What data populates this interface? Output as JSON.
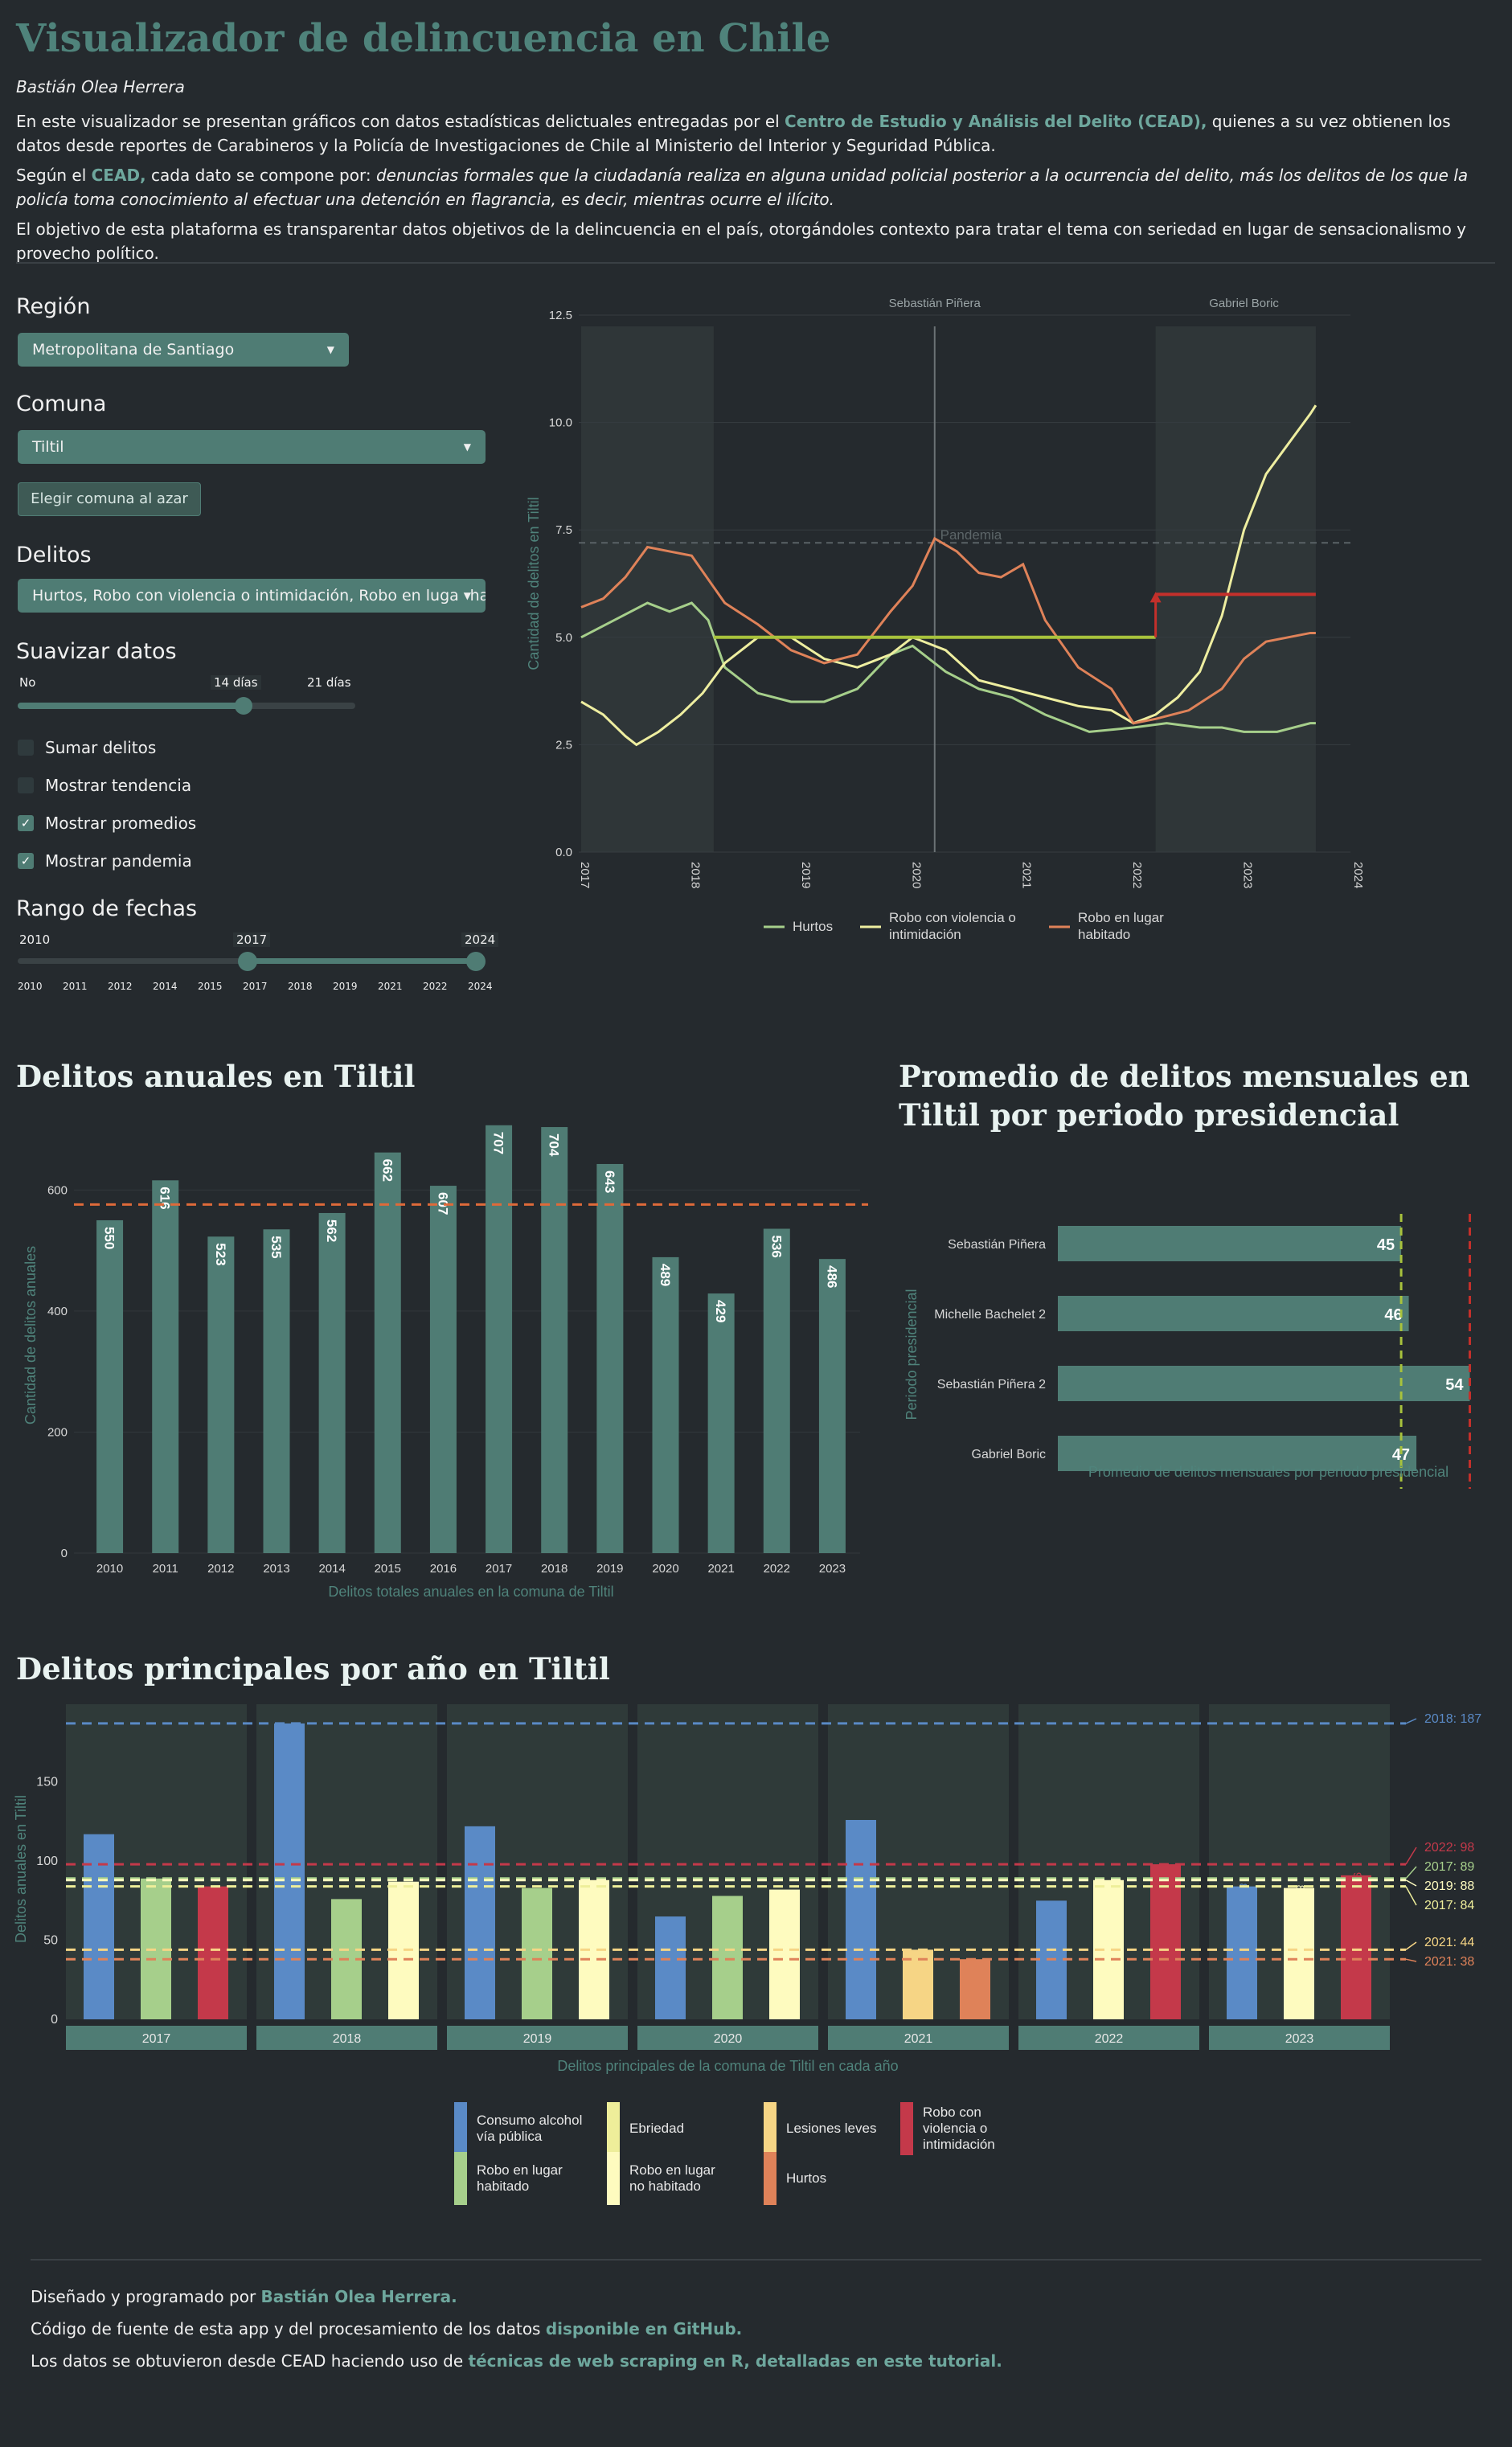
{
  "header": {
    "title": "Visualizador de delincuencia en Chile",
    "author": "Bastián Olea Herrera",
    "p1_pre": "En este visualizador se presentan gráficos con datos estadísticas delictuales entregadas por el ",
    "p1_link": "Centro de Estudio y Análisis del Delito (CEAD),",
    "p1_post": " quienes a su vez obtienen los datos desde reportes de Carabineros y la Policía de Investigaciones de Chile al Ministerio del Interior y Seguridad Pública.",
    "p2_pre": "Según el ",
    "p2_link": "CEAD,",
    "p2_mid": " cada dato se compone por: ",
    "p2_em": "denuncias formales que la ciudadanía realiza en alguna unidad policial posterior a la ocurrencia del delito, más los delitos de los que la policía toma conocimiento al efectuar una detención en flagrancia, es decir, mientras ocurre el ilícito.",
    "p3": "El objetivo de esta plataforma es transparentar datos objetivos de la delincuencia en el país, otorgándoles contexto para tratar el tema con seriedad en lugar de sensacionalismo y provecho político."
  },
  "controls": {
    "region_label": "Región",
    "region_value": "Metropolitana de Santiago",
    "comuna_label": "Comuna",
    "comuna_value": "Tiltil",
    "random_button": "Elegir comuna al azar",
    "delitos_label": "Delitos",
    "delitos_value": "Hurtos, Robo con violencia o intimidación, Robo en lugar habitado",
    "suavizar_label": "Suavizar datos",
    "suavizar_min": "No",
    "suavizar_value": "14 días",
    "suavizar_max": "21 días",
    "suavizar_fraction": 0.67,
    "sumar": "Sumar delitos",
    "tendencia": "Mostrar tendencia",
    "promedios": "Mostrar promedios",
    "pandemia": "Mostrar pandemia",
    "sumar_checked": false,
    "tendencia_checked": false,
    "promedios_checked": true,
    "pandemia_checked": true,
    "rango_label": "Rango de fechas",
    "rango_min": "2010",
    "rango_from": "2017",
    "rango_to": "2024",
    "rango_ticks": [
      "2010",
      "2011",
      "2012",
      "2014",
      "2015",
      "2017",
      "2018",
      "2019",
      "2021",
      "2022",
      "2024"
    ]
  },
  "chart_data": [
    {
      "type": "line",
      "ylabel": "Cantidad de delitos en Tiltil",
      "xlim": [
        2017,
        2024
      ],
      "ylim": [
        0,
        12.5
      ],
      "x_ticks": [
        "2017",
        "2018",
        "2019",
        "2020",
        "2021",
        "2022",
        "2023",
        "2024"
      ],
      "y_ticks": [
        "0.0",
        "2.5",
        "5.0",
        "7.5",
        "10.0",
        "12.5"
      ],
      "periods": [
        {
          "name": "Sebastián Piñera",
          "label_x": 2020.2
        },
        {
          "name": "Gabriel Boric",
          "label_x": 2023.0
        }
      ],
      "shaded": [
        [
          2017,
          2018.2
        ],
        [
          2022.2,
          2023.65
        ]
      ],
      "vline": 2020.2,
      "pandemia": {
        "label": "Pandemia",
        "y": 7.2
      },
      "mean_line": {
        "from": 2018.2,
        "to": 2022.2,
        "y": 5.0
      },
      "mean_line_2": {
        "from": 2022.2,
        "to": 2023.65,
        "y": 6.0
      },
      "series": [
        {
          "name": "Hurtos",
          "color": "#a6cf8b",
          "x": [
            2017,
            2017.3,
            2017.6,
            2017.8,
            2018.0,
            2018.15,
            2018.3,
            2018.6,
            2018.9,
            2019.2,
            2019.5,
            2019.8,
            2020.0,
            2020.3,
            2020.6,
            2020.9,
            2021.2,
            2021.6,
            2022.0,
            2022.3,
            2022.6,
            2022.8,
            2023.0,
            2023.3,
            2023.6,
            2023.65
          ],
          "y": [
            5.0,
            5.4,
            5.8,
            5.6,
            5.8,
            5.4,
            4.3,
            3.7,
            3.5,
            3.5,
            3.8,
            4.6,
            4.8,
            4.2,
            3.8,
            3.6,
            3.2,
            2.8,
            2.9,
            3.0,
            2.9,
            2.9,
            2.8,
            2.8,
            3.0,
            3.0
          ]
        },
        {
          "name": "Robo con violencia o intimidación",
          "color": "#eeeea0",
          "x": [
            2017,
            2017.2,
            2017.4,
            2017.5,
            2017.7,
            2017.9,
            2018.1,
            2018.3,
            2018.6,
            2018.9,
            2019.2,
            2019.5,
            2019.8,
            2020.0,
            2020.3,
            2020.6,
            2020.9,
            2021.2,
            2021.5,
            2021.8,
            2022.0,
            2022.2,
            2022.4,
            2022.6,
            2022.8,
            2023.0,
            2023.2,
            2023.4,
            2023.6,
            2023.65
          ],
          "y": [
            3.5,
            3.2,
            2.7,
            2.5,
            2.8,
            3.2,
            3.7,
            4.4,
            5.0,
            5.0,
            4.5,
            4.3,
            4.6,
            5.0,
            4.7,
            4.0,
            3.8,
            3.6,
            3.4,
            3.3,
            3.0,
            3.2,
            3.6,
            4.2,
            5.5,
            7.5,
            8.8,
            9.5,
            10.2,
            10.4
          ]
        },
        {
          "name": "Robo en lugar habitado",
          "color": "#df8259",
          "x": [
            2017,
            2017.2,
            2017.4,
            2017.6,
            2017.8,
            2018.0,
            2018.3,
            2018.6,
            2018.9,
            2019.2,
            2019.5,
            2019.8,
            2020.0,
            2020.2,
            2020.4,
            2020.6,
            2020.8,
            2021.0,
            2021.2,
            2021.5,
            2021.8,
            2022.0,
            2022.2,
            2022.5,
            2022.8,
            2023.0,
            2023.2,
            2023.4,
            2023.6,
            2023.65
          ],
          "y": [
            5.7,
            5.9,
            6.4,
            7.1,
            7.0,
            6.9,
            5.8,
            5.3,
            4.7,
            4.4,
            4.6,
            5.6,
            6.2,
            7.3,
            7.0,
            6.5,
            6.4,
            6.7,
            5.4,
            4.3,
            3.8,
            3.0,
            3.1,
            3.3,
            3.8,
            4.5,
            4.9,
            5.0,
            5.1,
            5.1
          ]
        }
      ]
    },
    {
      "type": "bar",
      "title": "Delitos anuales en Tiltil",
      "ylabel": "Cantidad de delitos anuales",
      "xlabel": "Delitos totales anuales en la comuna de Tiltil",
      "categories": [
        "2010",
        "2011",
        "2012",
        "2013",
        "2014",
        "2015",
        "2016",
        "2017",
        "2018",
        "2019",
        "2020",
        "2021",
        "2022",
        "2023"
      ],
      "values": [
        550,
        616,
        523,
        535,
        562,
        662,
        607,
        707,
        704,
        643,
        489,
        429,
        536,
        486
      ],
      "mean": 576,
      "ylim": [
        0,
        720
      ],
      "y_ticks": [
        "0",
        "200",
        "400",
        "600"
      ]
    },
    {
      "type": "bar",
      "title": "Promedio de delitos mensuales en Tiltil por periodo presidencial",
      "orientation": "horizontal",
      "ylabel": "Periodo presidencial",
      "xlabel": "Promedio de delitos mensuales por periodo presidencial",
      "categories": [
        "Sebastián Piñera",
        "Michelle Bachelet 2",
        "Sebastián Piñera 2",
        "Gabriel Boric"
      ],
      "values": [
        45,
        46,
        54,
        47
      ],
      "mean": 45,
      "max_line": 54,
      "xlim": [
        0,
        55
      ]
    },
    {
      "type": "bar",
      "title": "Delitos principales por año en Tiltil",
      "ylabel": "Delitos anuales en Tiltil",
      "xlabel": "Delitos principales de la comuna de  Tiltil en cada año",
      "ylim": [
        0,
        190
      ],
      "y_ticks": [
        "0",
        "50",
        "100",
        "150"
      ],
      "facets": [
        {
          "year": "2017",
          "bars": [
            {
              "cat": "Consumo alcohol vía pública",
              "value": 117
            },
            {
              "cat": "Robo en lugar habitado",
              "value": 89
            },
            {
              "cat": "Robo con violencia o intimidación",
              "value": 84
            }
          ]
        },
        {
          "year": "2018",
          "bars": [
            {
              "cat": "Consumo alcohol vía pública",
              "value": 187
            },
            {
              "cat": "Robo en lugar habitado",
              "value": 76
            },
            {
              "cat": "Robo en lugar no habitado",
              "value": 87
            }
          ]
        },
        {
          "year": "2019",
          "bars": [
            {
              "cat": "Consumo alcohol vía pública",
              "value": 122
            },
            {
              "cat": "Robo en lugar habitado",
              "value": 83
            },
            {
              "cat": "Robo en lugar no habitado",
              "value": 88
            }
          ]
        },
        {
          "year": "2020",
          "bars": [
            {
              "cat": "Consumo alcohol vía pública",
              "value": 65
            },
            {
              "cat": "Robo en lugar habitado",
              "value": 78
            },
            {
              "cat": "Robo en lugar no habitado",
              "value": 82
            }
          ]
        },
        {
          "year": "2021",
          "bars": [
            {
              "cat": "Consumo alcohol vía pública",
              "value": 126
            },
            {
              "cat": "Lesiones leves",
              "value": 44
            },
            {
              "cat": "Hurtos",
              "value": 38
            }
          ]
        },
        {
          "year": "2022",
          "bars": [
            {
              "cat": "Consumo alcohol vía pública",
              "value": 75
            },
            {
              "cat": "Robo en lugar no habitado",
              "value": 88
            },
            {
              "cat": "Robo con violencia o intimidación",
              "value": 98
            }
          ]
        },
        {
          "year": "2023",
          "bars": [
            {
              "cat": "Consumo alcohol vía pública",
              "value": 84,
              "label": "84"
            },
            {
              "cat": "Robo en lugar no habitado",
              "value": 83,
              "label": "83"
            },
            {
              "cat": "Robo con violencia o intimidación",
              "value": 91,
              "label": "91"
            }
          ]
        }
      ],
      "max_lines": [
        {
          "label": "2018: 187",
          "value": 187,
          "color": "#5a8ac6"
        },
        {
          "label": "2022: 98",
          "value": 98,
          "color": "#c4394a"
        },
        {
          "label": "2017: 89",
          "value": 89,
          "color": "#a6cf8b"
        },
        {
          "label": "2019: 88",
          "value": 88,
          "color": "#fefbbf"
        },
        {
          "label": "2017: 84",
          "value": 84,
          "color": "#eeee9a"
        },
        {
          "label": "2021: 44",
          "value": 44,
          "color": "#f6d585"
        },
        {
          "label": "2021: 38",
          "value": 38,
          "color": "#df8259"
        }
      ],
      "legend": [
        {
          "name": "Consumo alcohol vía pública",
          "color": "#5a8ac6"
        },
        {
          "name": "Robo en lugar habitado",
          "color": "#a6cf8b"
        },
        {
          "name": "Ebriedad",
          "color": "#eeee9a"
        },
        {
          "name": "Robo en lugar no habitado",
          "color": "#fefbbf"
        },
        {
          "name": "Lesiones leves",
          "color": "#f6d585"
        },
        {
          "name": "Hurtos",
          "color": "#df8259"
        },
        {
          "name": "Robo con violencia o intimidación",
          "color": "#c4394a"
        }
      ]
    }
  ],
  "footer": {
    "l1_pre": "Diseñado y programado por ",
    "l1_link": "Bastián Olea Herrera.",
    "l2_pre": "Código de fuente de esta app y del procesamiento de los datos ",
    "l2_link": "disponible en GitHub.",
    "l3_pre": "Los datos se obtuvieron desde CEAD haciendo uso de ",
    "l3_link": "técnicas de web scraping en R, detalladas en este tutorial."
  },
  "colors": {
    "accent": "#4f837b",
    "bar": "#4f7c74",
    "background": "#252a2e",
    "mean_dash": "#df6a3a"
  }
}
